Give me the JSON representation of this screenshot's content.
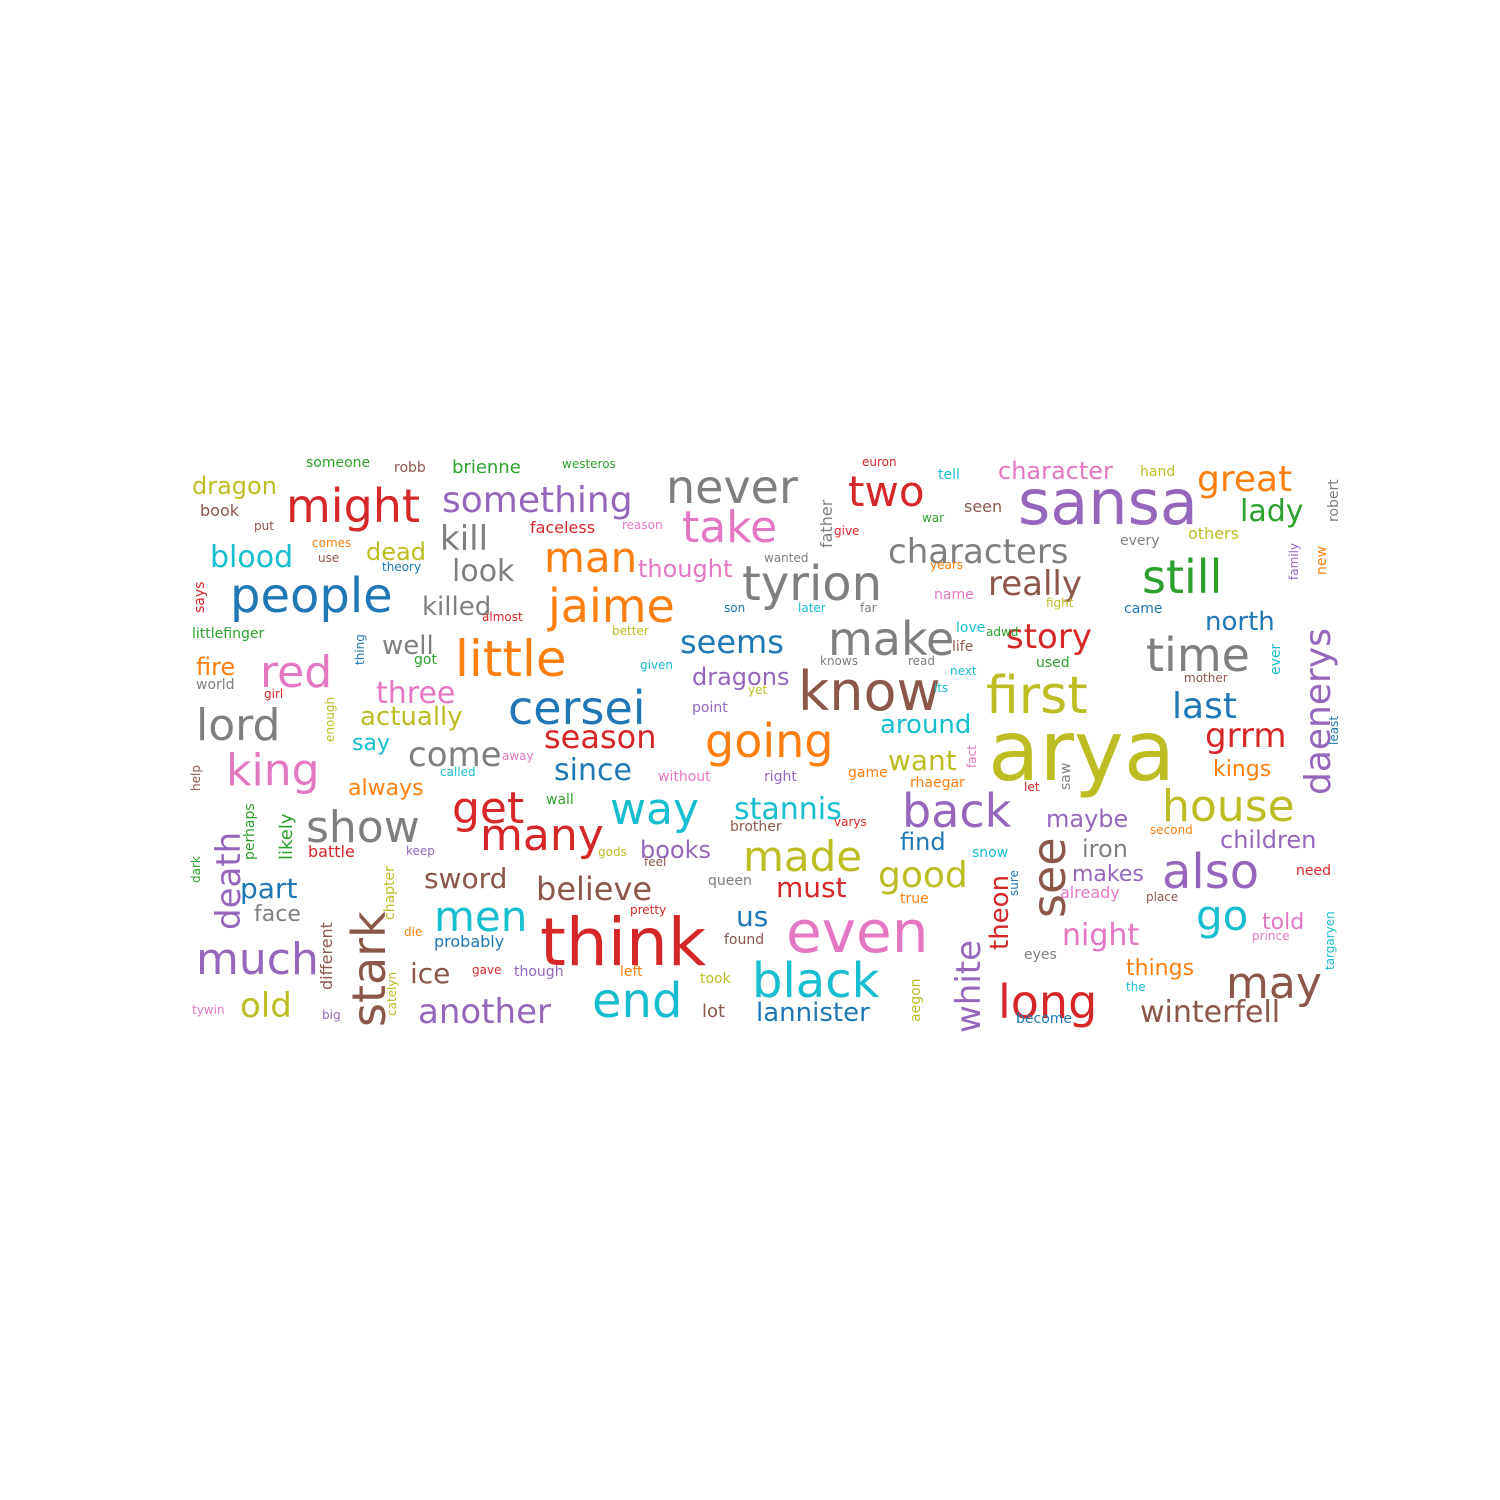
{
  "palette": {
    "blue": "#1f77b4",
    "orange": "#ff7f0e",
    "green": "#2ca02c",
    "red": "#d62728",
    "purple": "#9467bd",
    "brown": "#8c564b",
    "pink": "#e377c2",
    "gray": "#7f7f7f",
    "olive": "#bcbd22",
    "cyan": "#17becf"
  },
  "words": [
    {
      "text": "arya",
      "color": "olive"
    },
    {
      "text": "sansa",
      "color": "purple"
    },
    {
      "text": "think",
      "color": "red"
    },
    {
      "text": "even",
      "color": "pink"
    },
    {
      "text": "know",
      "color": "brown"
    },
    {
      "text": "first",
      "color": "olive"
    },
    {
      "text": "little",
      "color": "orange"
    },
    {
      "text": "people",
      "color": "blue"
    },
    {
      "text": "tyrion",
      "color": "gray"
    },
    {
      "text": "jaime",
      "color": "orange"
    },
    {
      "text": "cersei",
      "color": "blue"
    },
    {
      "text": "going",
      "color": "orange"
    },
    {
      "text": "might",
      "color": "red"
    },
    {
      "text": "never",
      "color": "gray"
    },
    {
      "text": "take",
      "color": "pink"
    },
    {
      "text": "still",
      "color": "green"
    },
    {
      "text": "time",
      "color": "gray"
    },
    {
      "text": "make",
      "color": "gray"
    },
    {
      "text": "back",
      "color": "purple"
    },
    {
      "text": "house",
      "color": "olive"
    },
    {
      "text": "also",
      "color": "purple"
    },
    {
      "text": "many",
      "color": "red"
    },
    {
      "text": "black",
      "color": "cyan"
    },
    {
      "text": "long",
      "color": "red"
    },
    {
      "text": "end",
      "color": "cyan"
    },
    {
      "text": "much",
      "color": "purple"
    },
    {
      "text": "king",
      "color": "pink"
    },
    {
      "text": "lord",
      "color": "gray"
    },
    {
      "text": "red",
      "color": "pink"
    },
    {
      "text": "show",
      "color": "gray"
    },
    {
      "text": "way",
      "color": "cyan"
    },
    {
      "text": "get",
      "color": "red"
    },
    {
      "text": "man",
      "color": "orange"
    },
    {
      "text": "two",
      "color": "red"
    },
    {
      "text": "something",
      "color": "purple"
    },
    {
      "text": "great",
      "color": "orange"
    },
    {
      "text": "made",
      "color": "olive"
    },
    {
      "text": "stark",
      "color": "brown"
    },
    {
      "text": "see",
      "color": "brown"
    },
    {
      "text": "men",
      "color": "cyan"
    },
    {
      "text": "may",
      "color": "brown"
    },
    {
      "text": "go",
      "color": "cyan"
    },
    {
      "text": "daenerys",
      "color": "purple"
    },
    {
      "text": "characters",
      "color": "gray"
    },
    {
      "text": "really",
      "color": "brown"
    },
    {
      "text": "story",
      "color": "red"
    },
    {
      "text": "last",
      "color": "blue"
    },
    {
      "text": "grrm",
      "color": "red"
    },
    {
      "text": "season",
      "color": "red"
    },
    {
      "text": "seems",
      "color": "blue"
    },
    {
      "text": "believe",
      "color": "brown"
    },
    {
      "text": "good",
      "color": "olive"
    },
    {
      "text": "another",
      "color": "purple"
    },
    {
      "text": "white",
      "color": "purple"
    },
    {
      "text": "death",
      "color": "purple"
    },
    {
      "text": "kill",
      "color": "gray"
    },
    {
      "text": "old",
      "color": "olive"
    },
    {
      "text": "come",
      "color": "gray"
    },
    {
      "text": "stannis",
      "color": "cyan"
    },
    {
      "text": "since",
      "color": "blue"
    },
    {
      "text": "look",
      "color": "gray"
    },
    {
      "text": "killed",
      "color": "gray"
    },
    {
      "text": "blood",
      "color": "cyan"
    },
    {
      "text": "three",
      "color": "pink"
    },
    {
      "text": "actually",
      "color": "olive"
    },
    {
      "text": "part",
      "color": "blue"
    },
    {
      "text": "sword",
      "color": "brown"
    },
    {
      "text": "must",
      "color": "red"
    },
    {
      "text": "night",
      "color": "pink"
    },
    {
      "text": "winterfell",
      "color": "brown"
    },
    {
      "text": "lannister",
      "color": "blue"
    },
    {
      "text": "want",
      "color": "olive"
    },
    {
      "text": "around",
      "color": "cyan"
    },
    {
      "text": "lady",
      "color": "green"
    },
    {
      "text": "north",
      "color": "blue"
    },
    {
      "text": "character",
      "color": "pink"
    },
    {
      "text": "children",
      "color": "purple"
    },
    {
      "text": "theon",
      "color": "red"
    },
    {
      "text": "books",
      "color": "purple"
    },
    {
      "text": "dragons",
      "color": "purple"
    },
    {
      "text": "well",
      "color": "gray"
    },
    {
      "text": "dead",
      "color": "olive"
    },
    {
      "text": "thought",
      "color": "pink"
    },
    {
      "text": "dragon",
      "color": "olive"
    },
    {
      "text": "fire",
      "color": "orange"
    },
    {
      "text": "ice",
      "color": "brown"
    },
    {
      "text": "us",
      "color": "blue"
    },
    {
      "text": "find",
      "color": "blue"
    },
    {
      "text": "things",
      "color": "orange"
    },
    {
      "text": "told",
      "color": "pink"
    },
    {
      "text": "kings",
      "color": "orange"
    },
    {
      "text": "iron",
      "color": "gray"
    },
    {
      "text": "maybe",
      "color": "purple"
    },
    {
      "text": "makes",
      "color": "purple"
    },
    {
      "text": "face",
      "color": "gray"
    },
    {
      "text": "always",
      "color": "orange"
    },
    {
      "text": "say",
      "color": "cyan"
    },
    {
      "text": "likely",
      "color": "green"
    },
    {
      "text": "brienne",
      "color": "green"
    },
    {
      "text": "faceless",
      "color": "red"
    },
    {
      "text": "rhaegar",
      "color": "orange"
    },
    {
      "text": "probably",
      "color": "blue"
    },
    {
      "text": "robb",
      "color": "brown"
    },
    {
      "text": "someone",
      "color": "green"
    },
    {
      "text": "westeros",
      "color": "green"
    },
    {
      "text": "euron",
      "color": "red"
    },
    {
      "text": "tell",
      "color": "cyan"
    },
    {
      "text": "hand",
      "color": "olive"
    },
    {
      "text": "robert",
      "color": "gray"
    },
    {
      "text": "book",
      "color": "brown"
    },
    {
      "text": "put",
      "color": "brown"
    },
    {
      "text": "reason",
      "color": "pink"
    },
    {
      "text": "father",
      "color": "gray"
    },
    {
      "text": "give",
      "color": "red"
    },
    {
      "text": "war",
      "color": "green"
    },
    {
      "text": "seen",
      "color": "brown"
    },
    {
      "text": "others",
      "color": "olive"
    },
    {
      "text": "every",
      "color": "gray"
    },
    {
      "text": "comes",
      "color": "orange"
    },
    {
      "text": "use",
      "color": "brown"
    },
    {
      "text": "theory",
      "color": "blue"
    },
    {
      "text": "wanted",
      "color": "gray"
    },
    {
      "text": "years",
      "color": "orange"
    },
    {
      "text": "family",
      "color": "purple"
    },
    {
      "text": "new",
      "color": "orange"
    },
    {
      "text": "says",
      "color": "red"
    },
    {
      "text": "littlefinger",
      "color": "green"
    },
    {
      "text": "thing",
      "color": "blue"
    },
    {
      "text": "almost",
      "color": "red"
    },
    {
      "text": "son",
      "color": "blue"
    },
    {
      "text": "later",
      "color": "cyan"
    },
    {
      "text": "far",
      "color": "gray"
    },
    {
      "text": "name",
      "color": "pink"
    },
    {
      "text": "adwd",
      "color": "green"
    },
    {
      "text": "fight",
      "color": "olive"
    },
    {
      "text": "came",
      "color": "blue"
    },
    {
      "text": "better",
      "color": "olive"
    },
    {
      "text": "love",
      "color": "cyan"
    },
    {
      "text": "life",
      "color": "brown"
    },
    {
      "text": "got",
      "color": "green"
    },
    {
      "text": "given",
      "color": "cyan"
    },
    {
      "text": "knows",
      "color": "gray"
    },
    {
      "text": "read",
      "color": "gray"
    },
    {
      "text": "next",
      "color": "cyan"
    },
    {
      "text": "used",
      "color": "green"
    },
    {
      "text": "ever",
      "color": "cyan"
    },
    {
      "text": "world",
      "color": "gray"
    },
    {
      "text": "girl",
      "color": "red"
    },
    {
      "text": "yet",
      "color": "olive"
    },
    {
      "text": "point",
      "color": "purple"
    },
    {
      "text": "its",
      "color": "cyan"
    },
    {
      "text": "mother",
      "color": "brown"
    },
    {
      "text": "enough",
      "color": "olive"
    },
    {
      "text": "least",
      "color": "blue"
    },
    {
      "text": "away",
      "color": "pink"
    },
    {
      "text": "fact",
      "color": "pink"
    },
    {
      "text": "help",
      "color": "brown"
    },
    {
      "text": "called",
      "color": "cyan"
    },
    {
      "text": "without",
      "color": "pink"
    },
    {
      "text": "right",
      "color": "purple"
    },
    {
      "text": "game",
      "color": "orange"
    },
    {
      "text": "saw",
      "color": "gray"
    },
    {
      "text": "let",
      "color": "red"
    },
    {
      "text": "perhaps",
      "color": "green"
    },
    {
      "text": "wall",
      "color": "green"
    },
    {
      "text": "brother",
      "color": "brown"
    },
    {
      "text": "varys",
      "color": "red"
    },
    {
      "text": "second",
      "color": "orange"
    },
    {
      "text": "battle",
      "color": "red"
    },
    {
      "text": "keep",
      "color": "purple"
    },
    {
      "text": "gods",
      "color": "olive"
    },
    {
      "text": "feel",
      "color": "brown"
    },
    {
      "text": "snow",
      "color": "cyan"
    },
    {
      "text": "dark",
      "color": "green"
    },
    {
      "text": "queen",
      "color": "gray"
    },
    {
      "text": "true",
      "color": "orange"
    },
    {
      "text": "sure",
      "color": "blue"
    },
    {
      "text": "already",
      "color": "pink"
    },
    {
      "text": "need",
      "color": "red"
    },
    {
      "text": "place",
      "color": "brown"
    },
    {
      "text": "chapter",
      "color": "olive"
    },
    {
      "text": "pretty",
      "color": "red"
    },
    {
      "text": "found",
      "color": "brown"
    },
    {
      "text": "different",
      "color": "brown"
    },
    {
      "text": "die",
      "color": "orange"
    },
    {
      "text": "targaryen",
      "color": "cyan"
    },
    {
      "text": "prince",
      "color": "pink"
    },
    {
      "text": "eyes",
      "color": "gray"
    },
    {
      "text": "catelyn",
      "color": "olive"
    },
    {
      "text": "gave",
      "color": "red"
    },
    {
      "text": "though",
      "color": "purple"
    },
    {
      "text": "left",
      "color": "orange"
    },
    {
      "text": "took",
      "color": "olive"
    },
    {
      "text": "aegon",
      "color": "olive"
    },
    {
      "text": "the",
      "color": "cyan"
    },
    {
      "text": "tywin",
      "color": "pink"
    },
    {
      "text": "big",
      "color": "purple"
    },
    {
      "text": "lot",
      "color": "brown"
    },
    {
      "text": "become",
      "color": "blue"
    }
  ]
}
